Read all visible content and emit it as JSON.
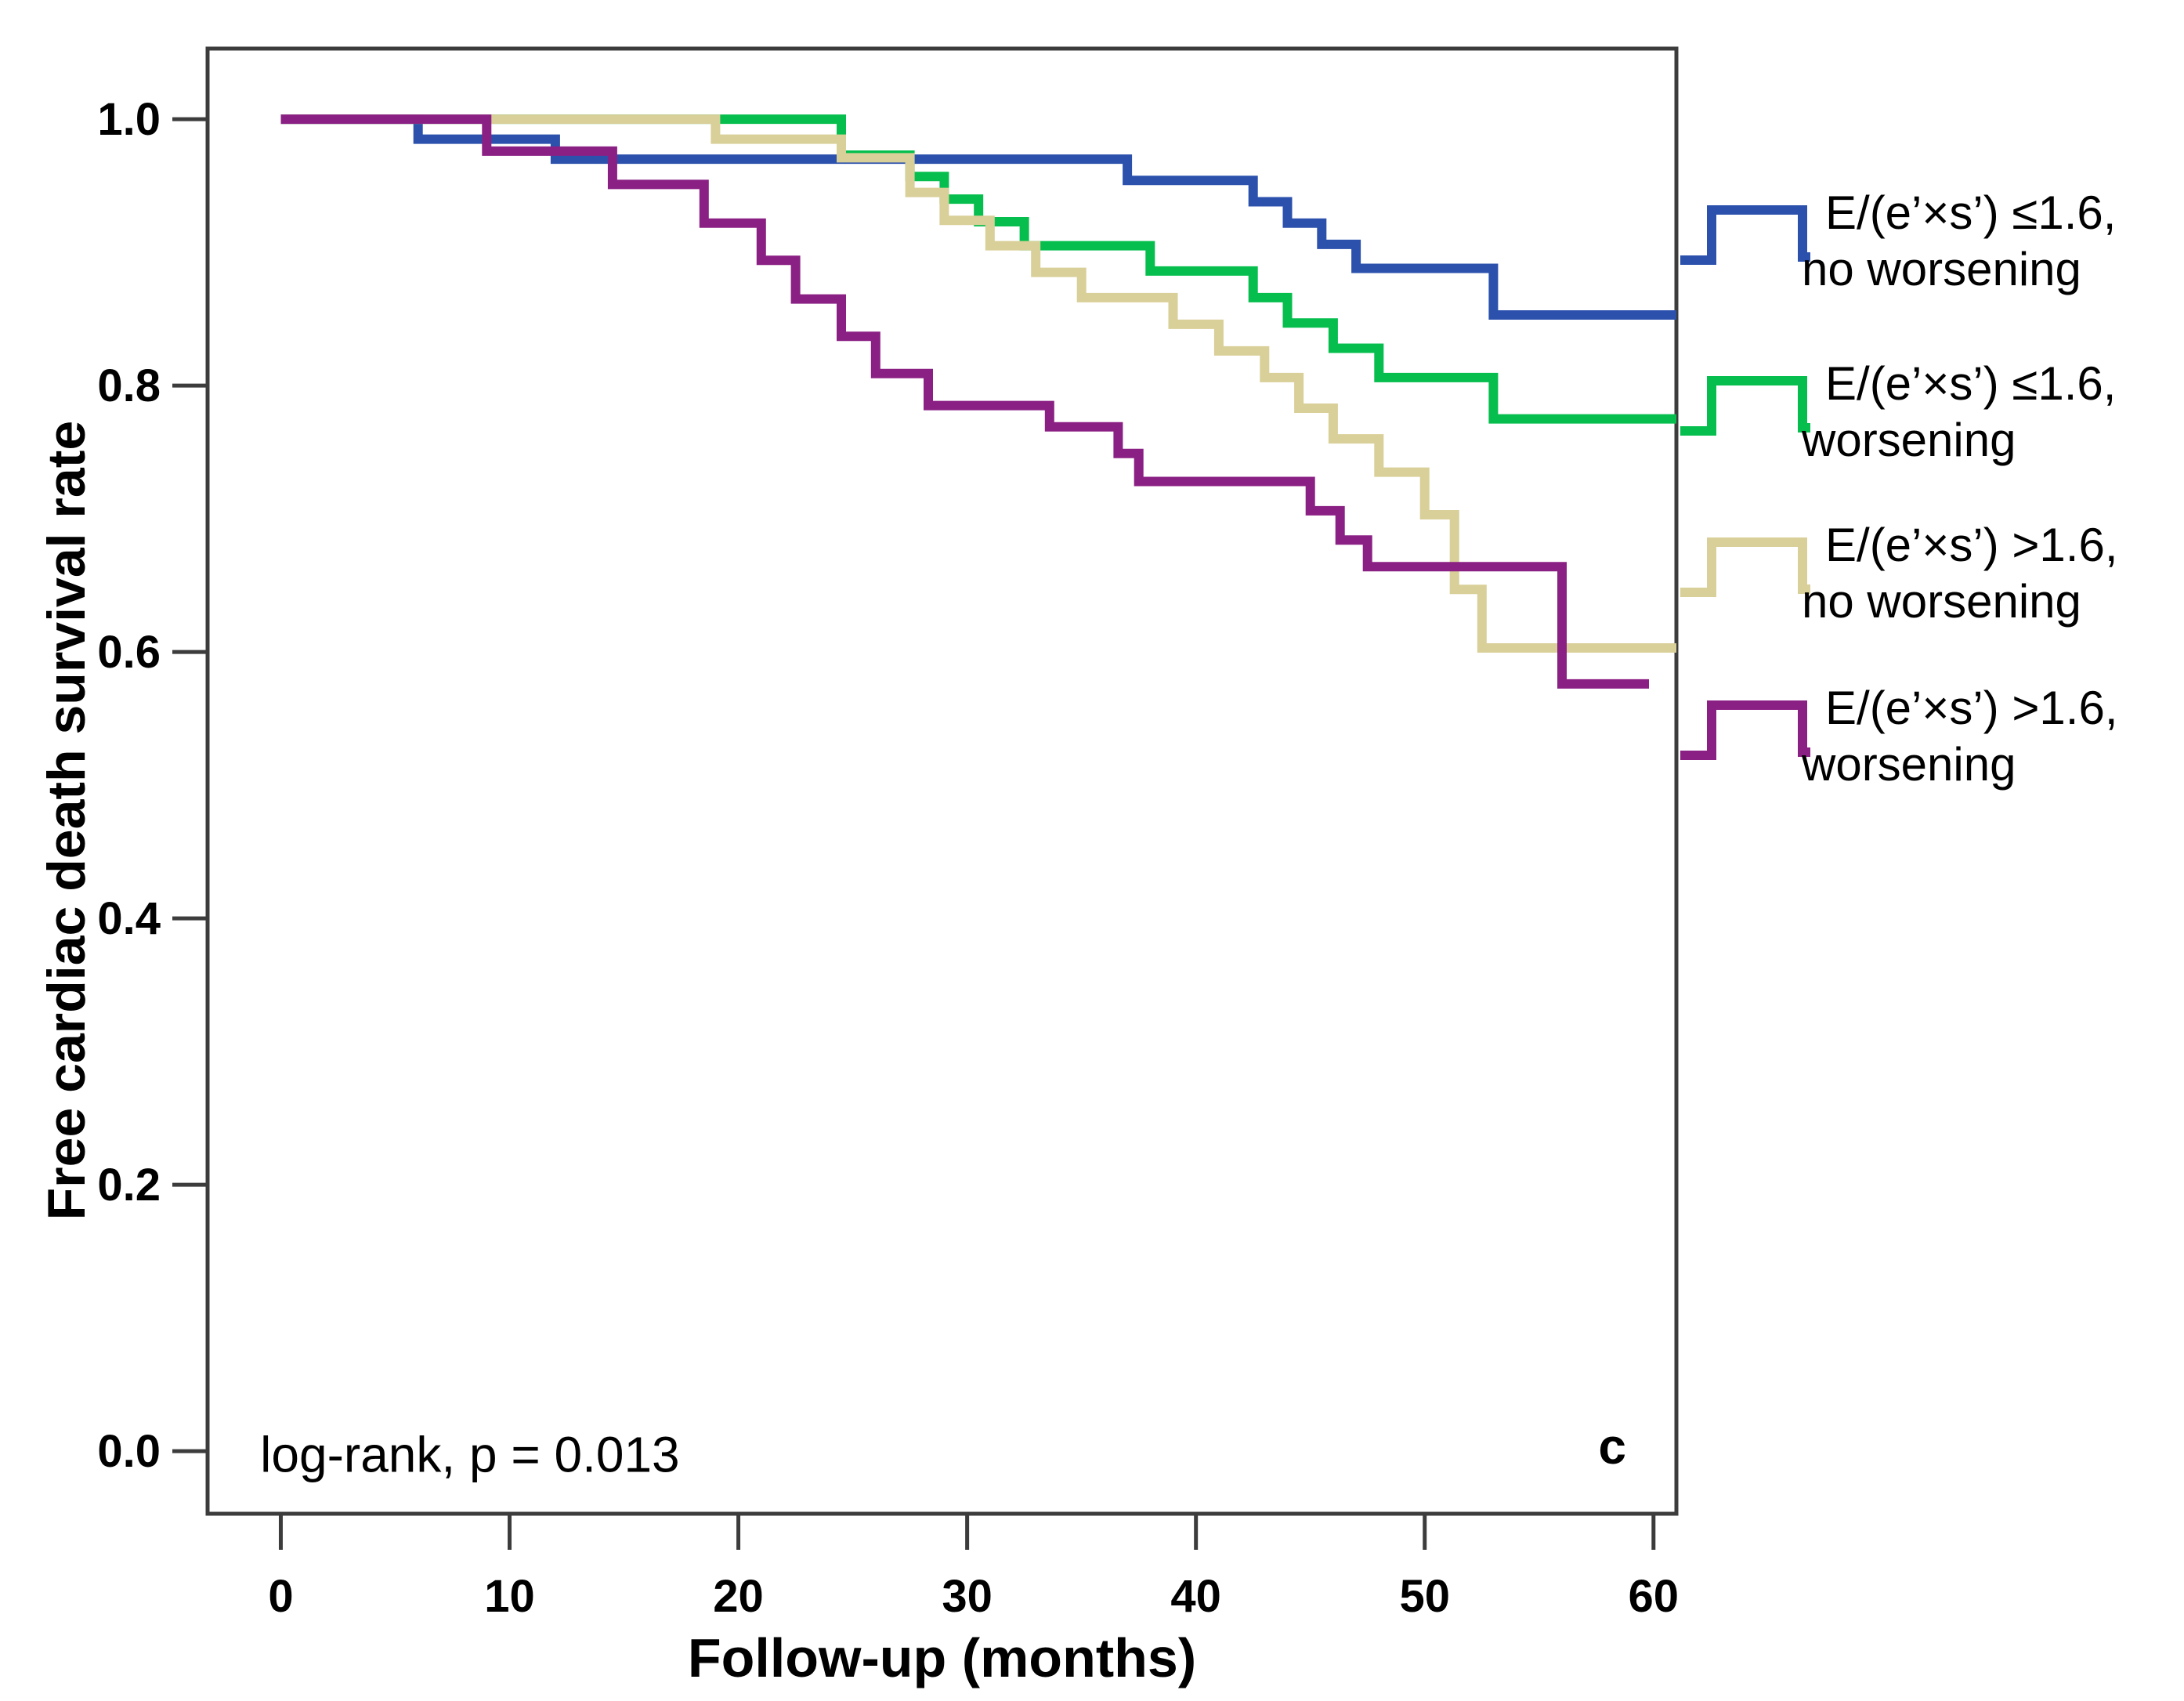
{
  "figure": {
    "panel_label": "c",
    "stats_annotation": "log-rank, p = 0.013",
    "x_axis_title": "Follow-up (months)",
    "y_axis_title": "Free cardiac death survival rate"
  },
  "chart_data": {
    "type": "km_step",
    "title": "",
    "xlabel": "Follow-up (months)",
    "ylabel": "Free cardiac death survival rate",
    "xlim": [
      -3.2,
      61.0
    ],
    "ylim": [
      -0.047,
      1.053
    ],
    "grid": false,
    "legend_position": "right-outside",
    "x_ticks": [
      0,
      10,
      20,
      30,
      40,
      50,
      60
    ],
    "x_tick_labels": [
      "0",
      "10",
      "20",
      "30",
      "40",
      "50",
      "60"
    ],
    "y_ticks": [
      1.0,
      0.8,
      0.6,
      0.4,
      0.2,
      0.0
    ],
    "y_tick_labels": [
      "1.0",
      "0.8",
      "0.6",
      "0.4",
      "0.2",
      "0.0"
    ],
    "axis_color": "#3c3c3c",
    "series": [
      {
        "id": "le16-no-worsening",
        "name": "E/(e’×s’) ≤1.6, no worsening",
        "color": "#2B51AD",
        "end_t": 61.0,
        "steps": [
          [
            0,
            1.0
          ],
          [
            6,
            0.985
          ],
          [
            12,
            0.97
          ],
          [
            37,
            0.954
          ],
          [
            42.5,
            0.938
          ],
          [
            44,
            0.922
          ],
          [
            45.5,
            0.906
          ],
          [
            47,
            0.888
          ],
          [
            53,
            0.853
          ]
        ]
      },
      {
        "id": "le16-worsening",
        "name": "E/(e’×s’) ≤1.6, worsening",
        "color": "#06BE4D",
        "end_t": 61.0,
        "steps": [
          [
            0,
            1.0
          ],
          [
            24.5,
            0.973
          ],
          [
            27.5,
            0.957
          ],
          [
            29,
            0.94
          ],
          [
            30.5,
            0.923
          ],
          [
            32.5,
            0.905
          ],
          [
            38,
            0.886
          ],
          [
            42.5,
            0.866
          ],
          [
            44,
            0.847
          ],
          [
            46,
            0.828
          ],
          [
            48,
            0.806
          ],
          [
            53,
            0.775
          ]
        ]
      },
      {
        "id": "gt16-no-worsening",
        "name": "E/(e’×s’) >1.6, no worsening",
        "color": "#D9CF98",
        "end_t": 61.0,
        "steps": [
          [
            0,
            1.0
          ],
          [
            19,
            0.985
          ],
          [
            24.5,
            0.971
          ],
          [
            27.5,
            0.945
          ],
          [
            29,
            0.924
          ],
          [
            31,
            0.905
          ],
          [
            33,
            0.885
          ],
          [
            35,
            0.866
          ],
          [
            39,
            0.846
          ],
          [
            41,
            0.826
          ],
          [
            43,
            0.806
          ],
          [
            44.5,
            0.783
          ],
          [
            46,
            0.76
          ],
          [
            48,
            0.735
          ],
          [
            50,
            0.703
          ],
          [
            51.3,
            0.647
          ],
          [
            52.5,
            0.603
          ]
        ]
      },
      {
        "id": "gt16-worsening",
        "name": "E/(e’×s’) >1.6, worsening",
        "color": "#8B2084",
        "end_t": 59.8,
        "steps": [
          [
            0,
            1.0
          ],
          [
            9,
            0.976
          ],
          [
            14.5,
            0.951
          ],
          [
            18.5,
            0.922
          ],
          [
            21,
            0.894
          ],
          [
            22.5,
            0.865
          ],
          [
            24.5,
            0.837
          ],
          [
            26,
            0.809
          ],
          [
            28.3,
            0.785
          ],
          [
            33.6,
            0.769
          ],
          [
            36.6,
            0.749
          ],
          [
            37.5,
            0.728
          ],
          [
            45,
            0.706
          ],
          [
            46.3,
            0.684
          ],
          [
            47.5,
            0.664
          ],
          [
            56,
            0.576
          ]
        ]
      }
    ],
    "legend": [
      {
        "series_id": "le16-no-worsening",
        "color": "#2B51AD",
        "line1": "E/(e’×s’) ≤1.6,",
        "line2": "no worsening"
      },
      {
        "series_id": "le16-worsening",
        "color": "#06BE4D",
        "line1": "E/(e’×s’) ≤1.6,",
        "line2": "worsening"
      },
      {
        "series_id": "gt16-no-worsening",
        "color": "#D9CF98",
        "line1": "E/(e’×s’) >1.6,",
        "line2": "no worsening"
      },
      {
        "series_id": "gt16-worsening",
        "color": "#8B2084",
        "line1": "E/(e’×s’) >1.6,",
        "line2": "worsening"
      }
    ],
    "annotations": [
      {
        "id": "log-rank-annotation",
        "text": "log-rank, p = 0.013",
        "t": -0.9,
        "v": -0.006,
        "bold": false,
        "anchor": "start",
        "font_size": 64
      },
      {
        "id": "panel-label",
        "text": "c",
        "t": 58.2,
        "v": 0.0,
        "bold": true,
        "anchor": "middle",
        "font_size": 64
      }
    ]
  }
}
